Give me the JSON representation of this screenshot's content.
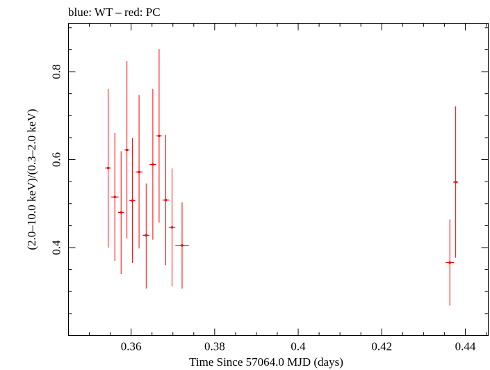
{
  "chart_data": {
    "type": "scatter",
    "title": "blue: WT – red: PC",
    "xlabel": "Time Since 57064.0 MJD (days)",
    "ylabel": "(2.0–10.0 keV)/(0.3–2.0 keV)",
    "xlim": [
      0.345,
      0.4455
    ],
    "ylim": [
      0.2,
      0.91
    ],
    "xticks": [
      0.36,
      0.38,
      0.4,
      0.42,
      0.44
    ],
    "xtick_labels": [
      "0.36",
      "0.38",
      "0.4",
      "0.42",
      "0.44"
    ],
    "yticks": [
      0.4,
      0.6,
      0.8
    ],
    "ytick_labels": [
      "0.4",
      "0.6",
      "0.8"
    ],
    "grid": false,
    "series": [
      {
        "color": "#ff0000",
        "points": [
          {
            "x": 0.3545,
            "xerr": 0.0007,
            "y": 0.581,
            "ylo": 0.4,
            "yhi": 0.761
          },
          {
            "x": 0.3561,
            "xerr": 0.0009,
            "y": 0.515,
            "ylo": 0.37,
            "yhi": 0.661
          },
          {
            "x": 0.3576,
            "xerr": 0.0007,
            "y": 0.48,
            "ylo": 0.34,
            "yhi": 0.619
          },
          {
            "x": 0.359,
            "xerr": 0.0006,
            "y": 0.622,
            "ylo": 0.421,
            "yhi": 0.824
          },
          {
            "x": 0.3603,
            "xerr": 0.0007,
            "y": 0.507,
            "ylo": 0.365,
            "yhi": 0.649
          },
          {
            "x": 0.3619,
            "xerr": 0.0008,
            "y": 0.572,
            "ylo": 0.398,
            "yhi": 0.747
          },
          {
            "x": 0.3636,
            "xerr": 0.0008,
            "y": 0.428,
            "ylo": 0.307,
            "yhi": 0.546
          },
          {
            "x": 0.3652,
            "xerr": 0.0008,
            "y": 0.589,
            "ylo": 0.418,
            "yhi": 0.761
          },
          {
            "x": 0.3667,
            "xerr": 0.0007,
            "y": 0.654,
            "ylo": 0.457,
            "yhi": 0.851
          },
          {
            "x": 0.3683,
            "xerr": 0.0008,
            "y": 0.508,
            "ylo": 0.36,
            "yhi": 0.656
          },
          {
            "x": 0.3698,
            "xerr": 0.0008,
            "y": 0.446,
            "ylo": 0.312,
            "yhi": 0.58
          },
          {
            "x": 0.3722,
            "xerr": 0.0016,
            "y": 0.405,
            "ylo": 0.307,
            "yhi": 0.503
          },
          {
            "x": 0.4363,
            "xerr": 0.001,
            "y": 0.366,
            "ylo": 0.268,
            "yhi": 0.464
          },
          {
            "x": 0.4377,
            "xerr": 0.0006,
            "y": 0.549,
            "ylo": 0.377,
            "yhi": 0.721
          }
        ]
      }
    ]
  }
}
